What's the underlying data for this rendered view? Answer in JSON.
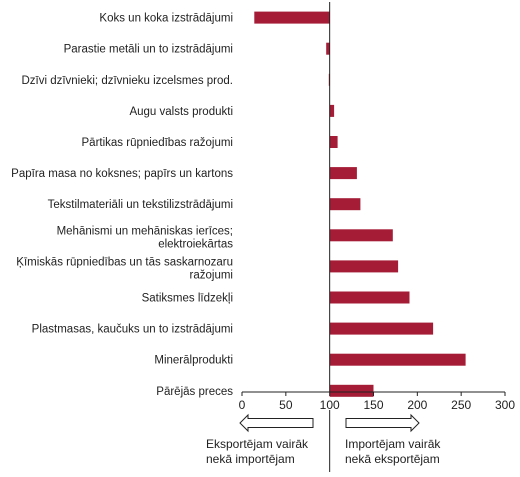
{
  "chart_data": {
    "type": "bar",
    "orientation": "horizontal",
    "categories": [
      "Koks un koka izstrādājumi",
      "Parastie metāli un to izstrādājumi",
      "Dzīvi dzīvnieki; dzīvnieku izcelsmes prod.",
      "Augu valsts produkti",
      "Pārtikas rūpniedības ražojumi",
      "Papīra masa no koksnes; papīrs un kartons",
      "Tekstilmateriāli un tekstilizstrādājumi",
      "Mehānismi un mehāniskas ierīces; elektroiekārtas",
      "Ķīmiskās rūpniedības un tās saskarnozaru ražojumi",
      "Satiksmes līdzekļi",
      "Plastmasas, kaučuks un to izstrādājumi",
      "Minerālprodukti",
      "Pārējās preces"
    ],
    "values": [
      14,
      96,
      99,
      105,
      109,
      131,
      135,
      172,
      178,
      191,
      218,
      255,
      150
    ],
    "baseline": 100,
    "xlim": [
      0,
      300
    ],
    "xticks": [
      0,
      50,
      100,
      150,
      200,
      250,
      300
    ],
    "bar_color": "#a51c36",
    "grid": false,
    "annotations": {
      "left": "Eksportējam vairāk nekā importējam",
      "right": "Importējam vairāk nekā eksportējam"
    }
  }
}
